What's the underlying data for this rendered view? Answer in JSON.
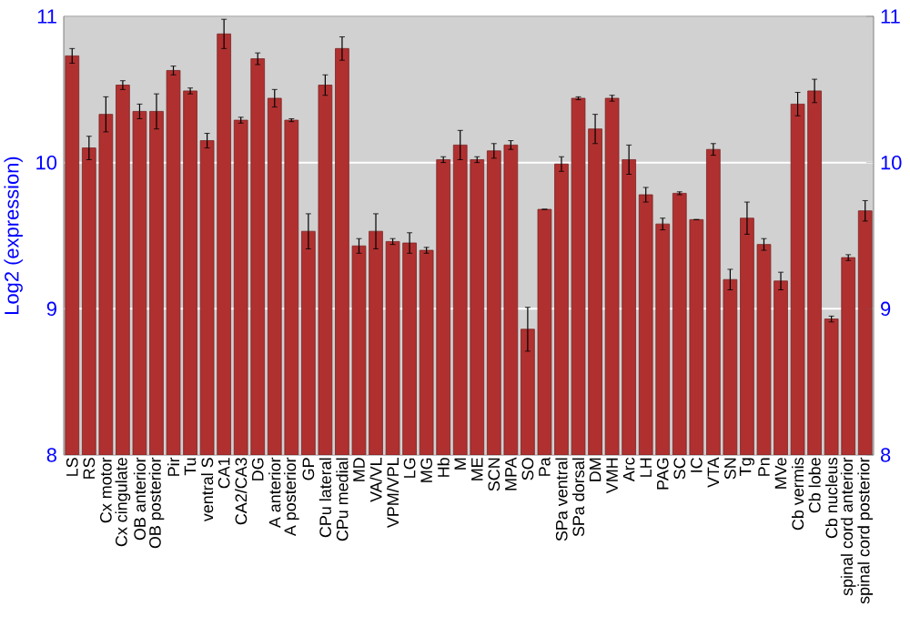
{
  "chart_data": {
    "type": "bar",
    "ylabel": "Log2 (expression)",
    "categories": [
      "LS",
      "RS",
      "Cx motor",
      "Cx cingulate",
      "OB anterior",
      "OB posterior",
      "Pir",
      "Tu",
      "ventral S",
      "CA1",
      "CA2/CA3",
      "DG",
      "A anterior",
      "A posterior",
      "GP",
      "CPu lateral",
      "CPu medial",
      "MD",
      "VA/VL",
      "VPM/VPL",
      "LG",
      "MG",
      "Hb",
      "M",
      "ME",
      "SCN",
      "MPA",
      "SO",
      "Pa",
      "SPa ventral",
      "SPa dorsal",
      "DM",
      "VMH",
      "Arc",
      "LH",
      "PAG",
      "SC",
      "IC",
      "VTA",
      "SN",
      "Tg",
      "Pn",
      "MVe",
      "Cb vermis",
      "Cb lobe",
      "Cb nucleus",
      "spinal cord anterior",
      "spinal cord posterior"
    ],
    "values": [
      10.73,
      10.1,
      10.33,
      10.53,
      10.35,
      10.35,
      10.63,
      10.49,
      10.15,
      10.88,
      10.29,
      10.71,
      10.44,
      10.29,
      9.53,
      10.53,
      10.78,
      9.43,
      9.53,
      9.46,
      9.45,
      9.4,
      10.02,
      10.12,
      10.02,
      10.08,
      10.12,
      8.86,
      9.68,
      9.99,
      10.44,
      10.23,
      10.44,
      10.02,
      9.78,
      9.58,
      9.79,
      9.61,
      10.09,
      9.2,
      9.62,
      9.44,
      9.19,
      10.4,
      10.49,
      8.93,
      9.35,
      9.67
    ],
    "errors": [
      0.05,
      0.08,
      0.12,
      0.03,
      0.05,
      0.12,
      0.03,
      0.02,
      0.05,
      0.1,
      0.02,
      0.04,
      0.06,
      0.01,
      0.12,
      0.07,
      0.08,
      0.05,
      0.12,
      0.02,
      0.07,
      0.02,
      0.02,
      0.1,
      0.02,
      0.05,
      0.03,
      0.15,
      null,
      0.05,
      0.01,
      0.1,
      0.02,
      0.1,
      0.05,
      0.04,
      0.01,
      null,
      0.04,
      0.07,
      0.11,
      0.04,
      0.06,
      0.08,
      0.08,
      0.02,
      0.02,
      0.07
    ],
    "color": "#b03030",
    "ylim": [
      8,
      11
    ],
    "yticks": [
      8,
      9,
      10,
      11
    ],
    "y2lim": [
      8,
      11
    ],
    "y2ticks": [
      8,
      9,
      10,
      11
    ],
    "grid": "y"
  }
}
